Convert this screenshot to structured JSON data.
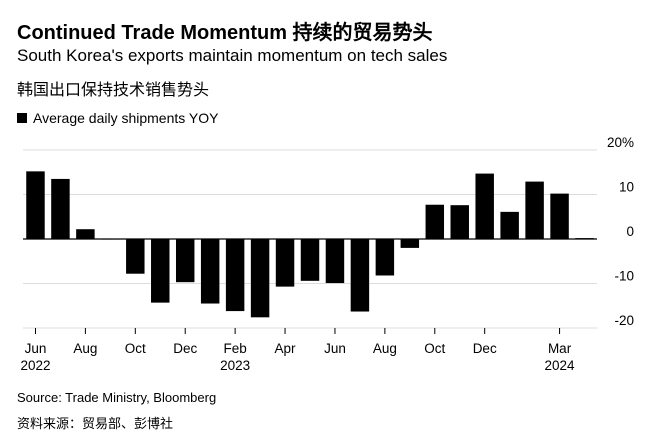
{
  "title": "Continued Trade Momentum 持续的贸易势头",
  "subtitle": "South Korea's exports maintain momentum on tech sales",
  "subtitle_cn": "韩国出口保持技术销售势头",
  "source": "Source: Trade Ministry, Bloomberg",
  "source_cn": "资料来源：贸易部、彭博社",
  "chart_data": {
    "type": "bar",
    "title": "Continued Trade Momentum 持续的贸易势头",
    "subtitle": "South Korea's exports maintain momentum on tech sales",
    "categories": [
      "Jun 2022",
      "Jul 2022",
      "Aug 2022",
      "Sep 2022",
      "Oct 2022",
      "Nov 2022",
      "Dec 2022",
      "Jan 2023",
      "Feb 2023",
      "Mar 2023",
      "Apr 2023",
      "May 2023",
      "Jun 2023",
      "Jul 2023",
      "Aug 2023",
      "Sep 2023",
      "Oct 2023",
      "Nov 2023",
      "Dec 2023",
      "Jan 2024",
      "Feb 2024",
      "Mar 2024",
      "Apr 2024"
    ],
    "series": [
      {
        "name": "Average daily shipments YOY",
        "values": [
          15.2,
          13.5,
          2.2,
          0.1,
          -7.8,
          -14.3,
          -9.7,
          -14.5,
          -16.2,
          -17.6,
          -10.7,
          -9.4,
          -9.9,
          -16.3,
          -8.2,
          -2.0,
          7.7,
          7.6,
          14.7,
          6.1,
          12.9,
          10.2,
          0.2
        ]
      }
    ],
    "ylim": [
      -20,
      20
    ],
    "yticks": [
      -20,
      -10,
      0,
      10,
      20
    ],
    "ytick_labels": [
      "-20",
      "-10",
      "0",
      "10",
      "20%"
    ],
    "xtick_labels": [
      {
        "index": 0,
        "label": "Jun",
        "year": "2022"
      },
      {
        "index": 2,
        "label": "Aug",
        "year": ""
      },
      {
        "index": 4,
        "label": "Oct",
        "year": ""
      },
      {
        "index": 6,
        "label": "Dec",
        "year": ""
      },
      {
        "index": 8,
        "label": "Feb",
        "year": "2023"
      },
      {
        "index": 10,
        "label": "Apr",
        "year": ""
      },
      {
        "index": 12,
        "label": "Jun",
        "year": ""
      },
      {
        "index": 14,
        "label": "Aug",
        "year": ""
      },
      {
        "index": 16,
        "label": "Oct",
        "year": ""
      },
      {
        "index": 18,
        "label": "Dec",
        "year": ""
      },
      {
        "index": 21,
        "label": "Mar",
        "year": "2024"
      }
    ],
    "grid": true,
    "legend": "top-left",
    "colors": {
      "bar": "#000000",
      "grid": "#dddddd",
      "axis": "#000000"
    }
  }
}
